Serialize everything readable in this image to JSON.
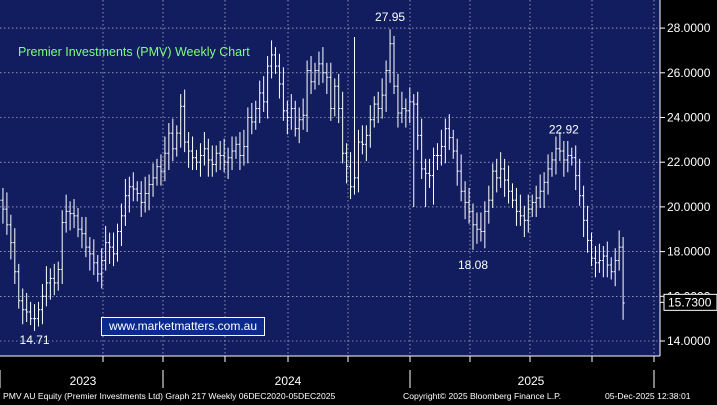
{
  "chart_data": {
    "type": "bar",
    "style": "ohlc",
    "title": "Premier Investments (PMV) Weekly Chart",
    "xlabel": "",
    "ylabel": "",
    "ylim": [
      13.6,
      29.2
    ],
    "grid": true,
    "y_ticks": [
      "14.0000",
      "16.0000",
      "18.0000",
      "20.0000",
      "22.0000",
      "24.0000",
      "26.0000",
      "28.0000"
    ],
    "x_years": [
      "2023",
      "2024",
      "2025"
    ],
    "last_price": "15.7300",
    "annotations": [
      {
        "text": "27.95",
        "week": 99,
        "value": 27.95
      },
      {
        "text": "22.92",
        "week": 143,
        "value": 22.92
      },
      {
        "text": "18.08",
        "week": 120,
        "value": 18.08
      },
      {
        "text": "14.71",
        "week": 9,
        "value": 14.71
      }
    ],
    "series": [
      {
        "type": "ohlc",
        "closes": [
          20.3,
          19.9,
          19.2,
          18.4,
          17.1,
          15.8,
          15.4,
          15.3,
          15.0,
          15.0,
          15.4,
          16.0,
          16.6,
          16.8,
          16.6,
          17.2,
          19.3,
          19.8,
          19.7,
          19.6,
          19.0,
          18.8,
          18.2,
          17.9,
          17.5,
          17.0,
          17.6,
          18.4,
          18.2,
          17.9,
          18.9,
          19.6,
          20.5,
          20.9,
          20.8,
          20.6,
          20.2,
          20.6,
          21.0,
          21.3,
          21.8,
          21.6,
          22.4,
          23.3,
          22.6,
          23.3,
          24.5,
          22.9,
          22.5,
          22.2,
          22.0,
          22.3,
          22.6,
          22.1,
          21.9,
          22.4,
          22.3,
          22.0,
          22.2,
          22.5,
          22.8,
          22.3,
          22.7,
          24.0,
          23.8,
          24.4,
          25.1,
          24.7,
          26.3,
          26.8,
          26.3,
          25.5,
          24.3,
          24.0,
          24.4,
          23.5,
          23.9,
          24.1,
          26.1,
          25.6,
          26.1,
          26.4,
          26.0,
          25.8,
          24.4,
          25.4,
          24.4,
          22.4,
          21.8,
          20.9,
          21.3,
          22.9,
          22.8,
          23.2,
          23.9,
          24.6,
          24.4,
          25.0,
          26.1,
          27.3,
          25.4,
          24.2,
          24.4,
          24.3,
          24.7,
          24.6,
          23.2,
          21.7,
          21.5,
          21.4,
          22.3,
          22.3,
          22.7,
          23.5,
          23.1,
          22.5,
          21.6,
          20.7,
          20.2,
          19.8,
          19.2,
          19.0,
          18.9,
          19.8,
          20.3,
          21.6,
          21.3,
          21.7,
          21.2,
          20.7,
          20.3,
          19.8,
          19.6,
          19.4,
          19.9,
          20.2,
          20.4,
          20.7,
          21.1,
          21.7,
          22.1,
          22.6,
          22.5,
          22.1,
          22.3,
          22.2,
          21.4,
          20.5,
          19.4,
          18.5,
          17.7,
          17.5,
          17.6,
          17.8,
          17.4,
          17.1,
          17.6,
          18.2,
          15.7
        ]
      }
    ]
  },
  "watermark": "www.marketmatters.com.au",
  "footer": {
    "left": "PMV AU Equity (Premier Investments Ltd) Graph 217 Weekly 06DEC2020-05DEC2025",
    "center": "Copyright© 2025 Bloomberg Finance L.P.",
    "right": "05-Dec-2025 12:38:01"
  },
  "colors": {
    "background": "#000000",
    "plot_bg": "#111d5e",
    "grid": "#ffffff",
    "bars": "#ffffff",
    "title": "#7dff7d",
    "watermark_bg": "#0c2a8c"
  }
}
